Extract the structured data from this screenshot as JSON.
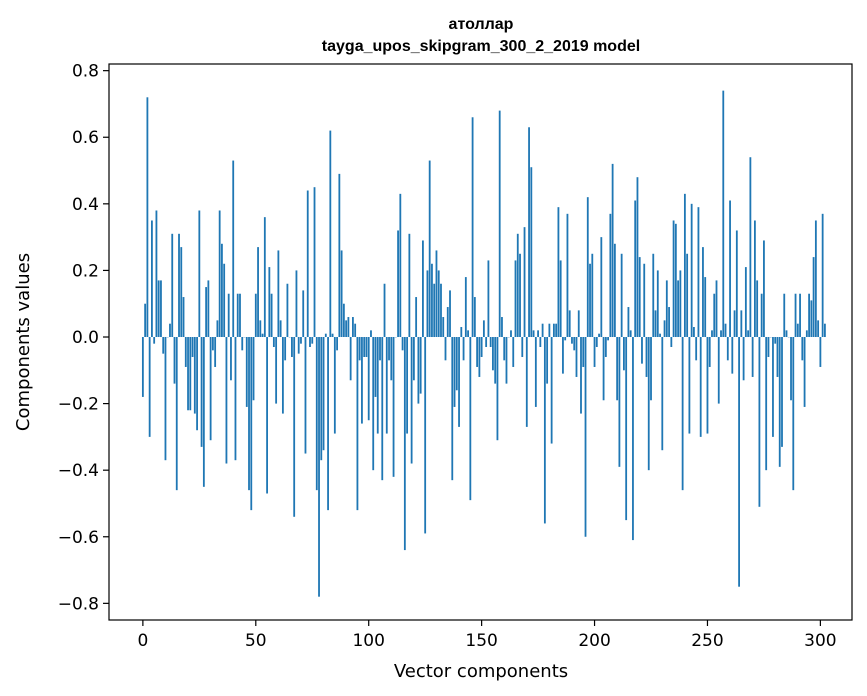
{
  "chart_data": {
    "type": "bar",
    "title": "атоллар",
    "subtitle": "tayga_upos_skipgram_300_2_2019 model",
    "xlabel": "Vector components",
    "ylabel": "Components values",
    "xlim": [
      -15,
      314
    ],
    "ylim": [
      -0.85,
      0.82
    ],
    "xticks": [
      0,
      50,
      100,
      150,
      200,
      250,
      300
    ],
    "xtick_labels": [
      "0",
      "50",
      "100",
      "150",
      "200",
      "250",
      "300"
    ],
    "yticks": [
      -0.8,
      -0.6,
      -0.4,
      -0.2,
      0.0,
      0.2,
      0.4,
      0.6,
      0.8
    ],
    "ytick_labels": [
      "−0.8",
      "−0.6",
      "−0.4",
      "−0.2",
      "0.0",
      "0.2",
      "0.4",
      "0.6",
      "0.8"
    ],
    "bar_color": "#1f77b4",
    "grid": false,
    "series": [
      {
        "name": "атоллар",
        "values": [
          -0.18,
          0.1,
          0.72,
          -0.3,
          0.35,
          -0.02,
          0.38,
          0.17,
          0.17,
          -0.05,
          -0.37,
          0.0,
          0.04,
          0.31,
          -0.14,
          -0.46,
          0.31,
          0.27,
          0.12,
          -0.09,
          -0.22,
          -0.22,
          -0.06,
          -0.23,
          -0.28,
          0.38,
          -0.33,
          -0.45,
          0.15,
          0.17,
          -0.31,
          -0.04,
          -0.09,
          0.05,
          0.38,
          0.28,
          0.22,
          -0.38,
          0.13,
          -0.13,
          0.53,
          -0.37,
          0.13,
          0.13,
          -0.04,
          0.0,
          -0.21,
          -0.46,
          -0.52,
          -0.19,
          0.13,
          0.27,
          0.05,
          0.01,
          0.36,
          -0.47,
          0.21,
          0.13,
          -0.03,
          -0.2,
          0.26,
          0.05,
          -0.23,
          -0.07,
          0.16,
          0.0,
          -0.06,
          -0.54,
          0.2,
          -0.05,
          -0.02,
          0.14,
          -0.35,
          0.44,
          -0.03,
          -0.02,
          0.45,
          -0.46,
          -0.78,
          -0.37,
          -0.34,
          0.01,
          -0.52,
          0.62,
          0.01,
          -0.29,
          -0.04,
          0.49,
          0.26,
          0.1,
          0.05,
          0.06,
          -0.13,
          0.06,
          0.04,
          -0.52,
          -0.07,
          -0.26,
          -0.06,
          -0.06,
          -0.25,
          0.02,
          -0.4,
          -0.18,
          -0.29,
          -0.07,
          -0.43,
          0.16,
          -0.29,
          -0.07,
          -0.13,
          -0.42,
          0.0,
          0.32,
          0.43,
          -0.04,
          -0.64,
          -0.29,
          0.31,
          -0.38,
          -0.13,
          0.12,
          -0.2,
          -0.17,
          0.29,
          -0.59,
          0.2,
          0.53,
          0.22,
          0.16,
          0.26,
          0.2,
          0.16,
          0.06,
          -0.07,
          0.09,
          0.14,
          -0.43,
          -0.21,
          -0.16,
          -0.27,
          0.03,
          -0.07,
          0.18,
          0.02,
          -0.49,
          0.66,
          0.12,
          -0.09,
          -0.12,
          -0.06,
          0.05,
          -0.03,
          0.23,
          -0.03,
          -0.1,
          -0.14,
          -0.31,
          0.68,
          0.06,
          -0.07,
          -0.14,
          0.0,
          0.02,
          -0.09,
          0.23,
          0.31,
          0.25,
          -0.06,
          0.33,
          -0.27,
          0.63,
          0.51,
          0.02,
          -0.21,
          0.02,
          -0.03,
          0.04,
          -0.56,
          -0.14,
          0.04,
          -0.32,
          0.04,
          0.04,
          0.39,
          0.23,
          -0.11,
          -0.01,
          0.37,
          0.08,
          -0.02,
          -0.04,
          -0.12,
          0.08,
          -0.23,
          -0.09,
          -0.6,
          0.42,
          0.22,
          0.25,
          -0.09,
          -0.03,
          0.01,
          0.3,
          -0.19,
          -0.06,
          -0.01,
          0.37,
          0.52,
          0.28,
          -0.19,
          -0.39,
          0.25,
          -0.1,
          -0.55,
          0.09,
          0.02,
          -0.61,
          0.41,
          0.48,
          0.24,
          -0.08,
          0.22,
          -0.12,
          -0.4,
          -0.19,
          0.25,
          0.08,
          0.2,
          0.01,
          -0.34,
          0.05,
          0.17,
          0.09,
          -0.03,
          0.35,
          0.34,
          0.17,
          0.2,
          -0.46,
          0.43,
          0.25,
          -0.29,
          0.4,
          0.03,
          -0.07,
          0.39,
          -0.3,
          0.27,
          0.18,
          -0.29,
          -0.09,
          0.02,
          0.13,
          0.17,
          -0.2,
          0.02,
          0.74,
          0.04,
          -0.07,
          0.41,
          -0.11,
          0.08,
          0.32,
          -0.75,
          0.08,
          -0.13,
          0.21,
          0.02,
          0.54,
          -0.12,
          0.35,
          0.17,
          -0.51,
          0.13,
          0.29,
          -0.4,
          -0.06,
          0.0,
          -0.3,
          -0.02,
          -0.12,
          -0.39,
          -0.33,
          0.13,
          0.02,
          0.0,
          -0.19,
          -0.46,
          0.13,
          0.04,
          0.13,
          -0.07,
          -0.21,
          0.02,
          0.13,
          0.11,
          0.24,
          0.35,
          0.05,
          -0.09,
          0.37,
          0.04
        ]
      }
    ]
  }
}
